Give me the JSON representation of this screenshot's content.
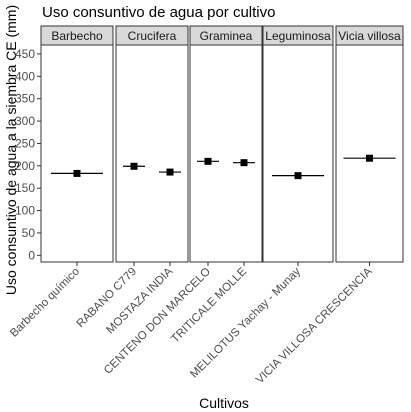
{
  "chart_data": {
    "type": "scatter",
    "title": "Uso consuntivo de agua por cultivo",
    "xlabel": "Cultivos",
    "ylabel": "Uso consuntivo de agua a la siembra CE (mm)",
    "ylim": [
      -15,
      470
    ],
    "yticks": [
      0,
      50,
      100,
      150,
      200,
      250,
      300,
      350,
      400,
      450
    ],
    "grid": false,
    "facets": [
      {
        "name": "Barbecho",
        "categories": [
          "Barbecho químico"
        ],
        "values": [
          183
        ]
      },
      {
        "name": "Crucifera",
        "categories": [
          "RABANO C779",
          "MOSTAZA INDIA"
        ],
        "values": [
          199,
          186
        ]
      },
      {
        "name": "Graminea",
        "categories": [
          "CENTENO DON MARCELO",
          "TRITICALE MOLLE"
        ],
        "values": [
          210,
          207
        ]
      },
      {
        "name": "Leguminosa",
        "categories": [
          "MELILOTUS Yachay - Munay"
        ],
        "values": [
          178
        ]
      },
      {
        "name": "Vicia villosa",
        "categories": [
          "VICIA VILLOSA CRESCENCIA"
        ],
        "values": [
          217
        ]
      }
    ],
    "colors": {
      "point": "#000000",
      "strip": "#d9d9d9",
      "border": "#333333",
      "axis_text": "#4d4d4d"
    }
  }
}
